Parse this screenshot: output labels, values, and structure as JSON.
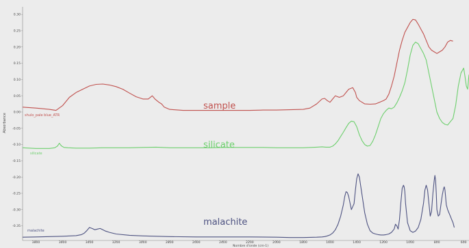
{
  "chart_data": {
    "type": "line",
    "title": "",
    "xlabel": "Nombre d'onde (cm-1)",
    "ylabel": "Absorbance",
    "x_reversed": true,
    "xlim": [
      3900,
      560
    ],
    "ylim": [
      -0.395,
      0.315
    ],
    "x_ticks": [
      3800,
      3600,
      3400,
      3200,
      3000,
      2800,
      2600,
      2400,
      2200,
      2000,
      1800,
      1600,
      1400,
      1200,
      1000,
      800,
      600
    ],
    "y_ticks": [
      0.3,
      0.25,
      0.2,
      0.15,
      0.1,
      0.05,
      0.0,
      -0.05,
      -0.1,
      -0.15,
      -0.2,
      -0.25,
      -0.3,
      -0.35
    ],
    "grid": false,
    "series": [
      {
        "name": "sample",
        "small_label": "shulo_pale blue_ATR",
        "color": "#c0504d",
        "x": [
          3900,
          3800,
          3700,
          3650,
          3600,
          3550,
          3500,
          3450,
          3400,
          3350,
          3300,
          3250,
          3200,
          3150,
          3100,
          3050,
          3000,
          2960,
          2930,
          2910,
          2880,
          2860,
          2840,
          2800,
          2700,
          2600,
          2500,
          2400,
          2300,
          2200,
          2100,
          2000,
          1900,
          1800,
          1750,
          1700,
          1660,
          1640,
          1620,
          1600,
          1580,
          1560,
          1530,
          1500,
          1480,
          1460,
          1430,
          1410,
          1400,
          1380,
          1360,
          1340,
          1300,
          1260,
          1230,
          1200,
          1180,
          1160,
          1140,
          1120,
          1100,
          1080,
          1060,
          1040,
          1020,
          1000,
          980,
          960,
          940,
          920,
          900,
          880,
          860,
          840,
          820,
          800,
          780,
          760,
          740,
          720,
          700,
          680
        ],
        "y": [
          0.015,
          0.012,
          0.008,
          0.005,
          0.02,
          0.045,
          0.06,
          0.07,
          0.08,
          0.085,
          0.086,
          0.083,
          0.078,
          0.07,
          0.058,
          0.047,
          0.04,
          0.04,
          0.05,
          0.04,
          0.03,
          0.025,
          0.015,
          0.008,
          0.005,
          0.005,
          0.005,
          0.005,
          0.005,
          0.005,
          0.006,
          0.006,
          0.007,
          0.008,
          0.012,
          0.025,
          0.04,
          0.042,
          0.035,
          0.03,
          0.04,
          0.05,
          0.045,
          0.05,
          0.06,
          0.07,
          0.075,
          0.06,
          0.045,
          0.035,
          0.03,
          0.025,
          0.024,
          0.025,
          0.03,
          0.035,
          0.04,
          0.055,
          0.08,
          0.11,
          0.15,
          0.19,
          0.22,
          0.245,
          0.26,
          0.275,
          0.285,
          0.283,
          0.27,
          0.255,
          0.24,
          0.22,
          0.2,
          0.19,
          0.185,
          0.18,
          0.185,
          0.19,
          0.2,
          0.215,
          0.22,
          0.218
        ]
      },
      {
        "name": "silicate",
        "small_label": "silicate",
        "color": "#6ccf6c",
        "x": [
          3900,
          3800,
          3700,
          3660,
          3640,
          3625,
          3610,
          3590,
          3560,
          3500,
          3400,
          3300,
          3200,
          3100,
          3000,
          2900,
          2800,
          2700,
          2600,
          2500,
          2400,
          2300,
          2200,
          2100,
          2000,
          1900,
          1800,
          1700,
          1660,
          1630,
          1600,
          1580,
          1560,
          1540,
          1520,
          1500,
          1480,
          1460,
          1440,
          1420,
          1400,
          1380,
          1360,
          1340,
          1320,
          1300,
          1280,
          1260,
          1240,
          1220,
          1200,
          1180,
          1160,
          1140,
          1120,
          1100,
          1080,
          1060,
          1040,
          1020,
          1000,
          980,
          960,
          940,
          920,
          900,
          880,
          860,
          840,
          820,
          800,
          780,
          760,
          740,
          720,
          700,
          680,
          660,
          640,
          620,
          600,
          590,
          580,
          570,
          560
        ],
        "y": [
          -0.11,
          -0.112,
          -0.112,
          -0.11,
          -0.105,
          -0.096,
          -0.104,
          -0.109,
          -0.11,
          -0.111,
          -0.111,
          -0.11,
          -0.11,
          -0.11,
          -0.109,
          -0.108,
          -0.11,
          -0.11,
          -0.11,
          -0.11,
          -0.109,
          -0.109,
          -0.109,
          -0.109,
          -0.11,
          -0.11,
          -0.11,
          -0.108,
          -0.107,
          -0.108,
          -0.108,
          -0.105,
          -0.098,
          -0.088,
          -0.075,
          -0.062,
          -0.048,
          -0.035,
          -0.028,
          -0.03,
          -0.045,
          -0.07,
          -0.088,
          -0.1,
          -0.105,
          -0.103,
          -0.09,
          -0.07,
          -0.045,
          -0.02,
          -0.005,
          0.005,
          0.012,
          0.01,
          0.015,
          0.028,
          0.045,
          0.065,
          0.09,
          0.13,
          0.175,
          0.205,
          0.215,
          0.21,
          0.195,
          0.18,
          0.16,
          0.12,
          0.08,
          0.04,
          0.0,
          -0.02,
          -0.032,
          -0.038,
          -0.04,
          -0.03,
          -0.02,
          0.02,
          0.08,
          0.12,
          0.135,
          0.11,
          0.08,
          0.07,
          0.115
        ]
      },
      {
        "name": "malachite",
        "small_label": "malachite",
        "color": "#4c5180",
        "x": [
          3900,
          3800,
          3700,
          3600,
          3500,
          3460,
          3440,
          3420,
          3400,
          3380,
          3360,
          3340,
          3320,
          3300,
          3280,
          3250,
          3200,
          3100,
          3000,
          2800,
          2600,
          2400,
          2200,
          2000,
          1900,
          1800,
          1700,
          1660,
          1640,
          1620,
          1600,
          1580,
          1560,
          1540,
          1520,
          1500,
          1490,
          1480,
          1470,
          1460,
          1440,
          1420,
          1410,
          1400,
          1390,
          1380,
          1360,
          1340,
          1320,
          1300,
          1280,
          1260,
          1240,
          1220,
          1200,
          1180,
          1160,
          1140,
          1120,
          1110,
          1100,
          1090,
          1080,
          1070,
          1060,
          1050,
          1045,
          1040,
          1035,
          1020,
          1000,
          980,
          960,
          940,
          920,
          900,
          890,
          880,
          870,
          860,
          850,
          840,
          830,
          820,
          815,
          810,
          805,
          800,
          790,
          780,
          770,
          760,
          750,
          745,
          740,
          735,
          730,
          720,
          710,
          700,
          690,
          680,
          670
        ],
        "y": [
          -0.385,
          -0.384,
          -0.383,
          -0.382,
          -0.38,
          -0.377,
          -0.373,
          -0.365,
          -0.355,
          -0.358,
          -0.362,
          -0.36,
          -0.358,
          -0.362,
          -0.366,
          -0.37,
          -0.375,
          -0.379,
          -0.381,
          -0.383,
          -0.384,
          -0.384,
          -0.384,
          -0.385,
          -0.386,
          -0.386,
          -0.385,
          -0.384,
          -0.383,
          -0.381,
          -0.378,
          -0.372,
          -0.362,
          -0.345,
          -0.32,
          -0.285,
          -0.26,
          -0.245,
          -0.248,
          -0.26,
          -0.3,
          -0.282,
          -0.24,
          -0.205,
          -0.19,
          -0.2,
          -0.255,
          -0.31,
          -0.345,
          -0.365,
          -0.372,
          -0.375,
          -0.377,
          -0.378,
          -0.378,
          -0.377,
          -0.375,
          -0.37,
          -0.36,
          -0.345,
          -0.35,
          -0.36,
          -0.33,
          -0.28,
          -0.235,
          -0.225,
          -0.23,
          -0.245,
          -0.28,
          -0.34,
          -0.365,
          -0.37,
          -0.366,
          -0.355,
          -0.33,
          -0.28,
          -0.24,
          -0.225,
          -0.24,
          -0.28,
          -0.32,
          -0.305,
          -0.25,
          -0.21,
          -0.195,
          -0.21,
          -0.25,
          -0.3,
          -0.32,
          -0.315,
          -0.285,
          -0.255,
          -0.235,
          -0.23,
          -0.24,
          -0.26,
          -0.285,
          -0.3,
          -0.31,
          -0.32,
          -0.33,
          -0.34,
          -0.355
        ]
      }
    ],
    "annotations": [
      "sample",
      "silicate",
      "malachite"
    ]
  },
  "colors": {
    "background": "#ececec",
    "axis": "#555555"
  }
}
